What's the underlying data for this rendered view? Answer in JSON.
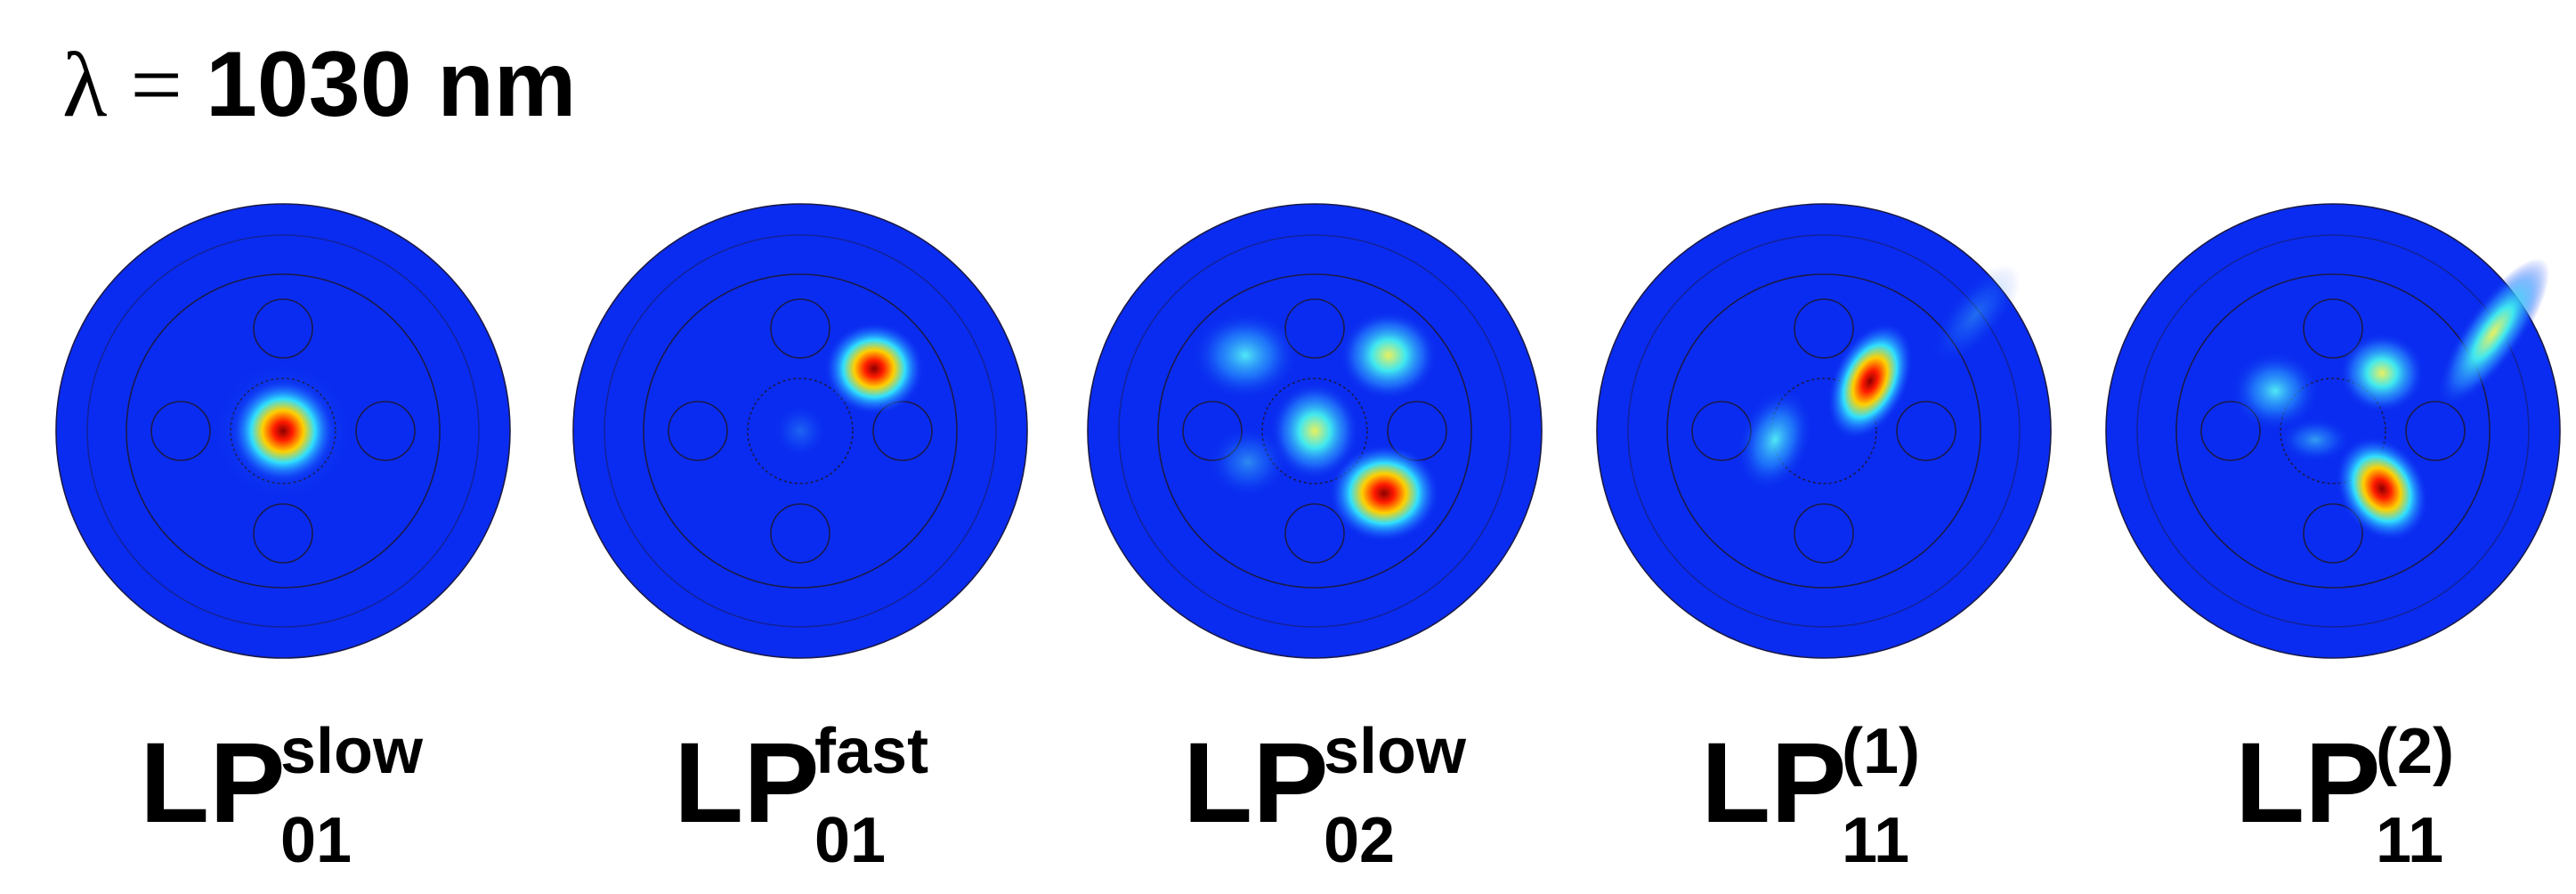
{
  "title": {
    "symbol": "λ =",
    "value": "1030 nm"
  },
  "panels": [
    {
      "base": "LP",
      "sup": "slow",
      "sub": "01"
    },
    {
      "base": "LP",
      "sup": "fast",
      "sub": "01"
    },
    {
      "base": "LP",
      "sup": "slow",
      "sub": "02"
    },
    {
      "base": "LP",
      "sup": "(1)",
      "sub": "11"
    },
    {
      "base": "LP",
      "sup": "(2)",
      "sub": "11"
    }
  ]
}
